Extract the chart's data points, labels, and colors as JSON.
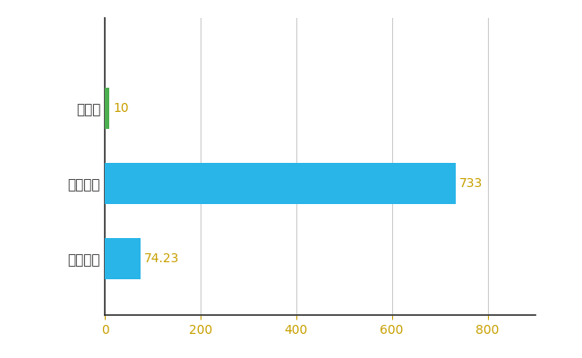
{
  "categories": [
    "全国平均",
    "全国最大",
    "高知県"
  ],
  "values": [
    74.23,
    733,
    10
  ],
  "bar_colors": [
    "#29b5e8",
    "#29b5e8",
    "#4caf50"
  ],
  "bar_labels": [
    "74.23",
    "733",
    "10"
  ],
  "label_color": "#c8a000",
  "xlim": [
    0,
    900
  ],
  "xticks": [
    0,
    200,
    400,
    600,
    800
  ],
  "background_color": "#ffffff",
  "grid_color": "#cccccc",
  "bar_height": 0.55,
  "label_fontsize": 10,
  "tick_fontsize": 10,
  "ytick_fontsize": 11,
  "xtick_color": "#c8a000",
  "ytick_color": "#333333",
  "spine_color": "#333333"
}
